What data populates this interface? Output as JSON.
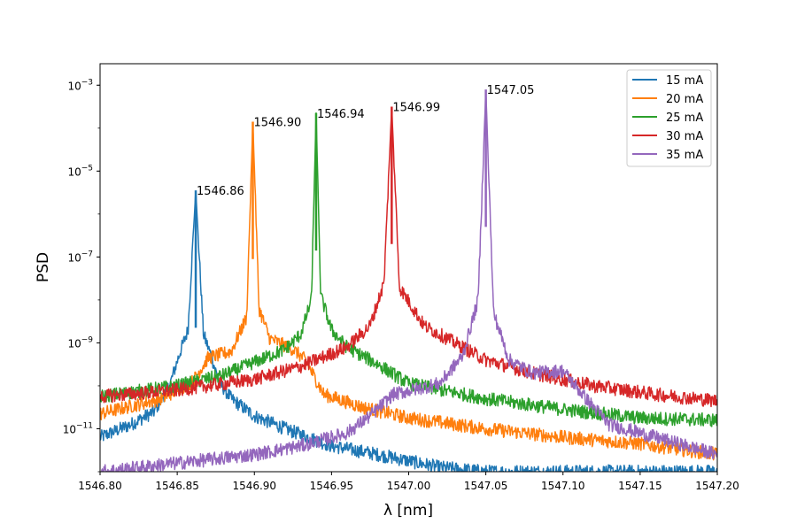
{
  "chart_data": {
    "type": "line",
    "xlabel": "λ [nm]",
    "ylabel": "PSD",
    "xlim": [
      1546.8,
      1547.2
    ],
    "ylim_log10": [
      -12.0,
      -2.5
    ],
    "y_scale": "log",
    "x_ticks": [
      "1546.80",
      "1546.85",
      "1546.90",
      "1546.95",
      "1547.00",
      "1547.05",
      "1547.10",
      "1547.15",
      "1547.20"
    ],
    "y_ticks": [
      {
        "base": "10",
        "exp": "−3",
        "log10": -3
      },
      {
        "base": "10",
        "exp": "−5",
        "log10": -5
      },
      {
        "base": "10",
        "exp": "−7",
        "log10": -7
      },
      {
        "base": "10",
        "exp": "−9",
        "log10": -9
      },
      {
        "base": "10",
        "exp": "−11",
        "log10": -11
      }
    ],
    "legend_position": "top-right",
    "grid": false,
    "series": [
      {
        "name": "15 mA",
        "color": "#1f77b4",
        "peak_x": 1546.862,
        "peak_log10": -5.45,
        "peak_label": "1546.86",
        "x": [
          1546.8,
          1546.82,
          1546.835,
          1546.845,
          1546.852,
          1546.857,
          1546.862,
          1546.867,
          1546.872,
          1546.877,
          1546.885,
          1546.9,
          1546.92,
          1546.95,
          1546.98,
          1547.02,
          1547.05
        ],
        "y_log10": [
          -11.2,
          -10.9,
          -10.6,
          -10.0,
          -9.2,
          -8.7,
          -5.45,
          -8.8,
          -9.3,
          -9.9,
          -10.3,
          -10.7,
          -11.0,
          -11.4,
          -11.6,
          -11.9,
          -12.0
        ]
      },
      {
        "name": "20 mA",
        "color": "#ff7f0e",
        "peak_x": 1546.899,
        "peak_log10": -3.85,
        "peak_label": "1546.90",
        "x": [
          1546.8,
          1546.84,
          1546.86,
          1546.87,
          1546.885,
          1546.895,
          1546.899,
          1546.903,
          1546.91,
          1546.925,
          1546.933,
          1546.945,
          1546.97,
          1547.0,
          1547.05,
          1547.1,
          1547.15,
          1547.2
        ],
        "y_log10": [
          -10.65,
          -10.3,
          -9.9,
          -9.35,
          -9.2,
          -8.4,
          -3.85,
          -8.2,
          -8.9,
          -9.15,
          -9.4,
          -10.2,
          -10.5,
          -10.75,
          -11.0,
          -11.2,
          -11.35,
          -11.6
        ]
      },
      {
        "name": "25 mA",
        "color": "#2ca02c",
        "peak_x": 1546.94,
        "peak_log10": -3.65,
        "peak_label": "1546.94",
        "x": [
          1546.8,
          1546.85,
          1546.88,
          1546.9,
          1546.92,
          1546.93,
          1546.937,
          1546.94,
          1546.943,
          1546.95,
          1546.96,
          1546.98,
          1547.0,
          1547.05,
          1547.1,
          1547.15,
          1547.2
        ],
        "y_log10": [
          -10.25,
          -10.0,
          -9.75,
          -9.45,
          -9.15,
          -8.8,
          -8.0,
          -3.65,
          -7.9,
          -8.7,
          -9.1,
          -9.5,
          -9.95,
          -10.3,
          -10.55,
          -10.75,
          -10.8
        ]
      },
      {
        "name": "30 mA",
        "color": "#d62728",
        "peak_x": 1546.989,
        "peak_log10": -3.5,
        "peak_label": "1546.99",
        "x": [
          1546.8,
          1546.85,
          1546.9,
          1546.93,
          1546.96,
          1546.975,
          1546.984,
          1546.989,
          1546.994,
          1547.01,
          1547.03,
          1547.05,
          1547.08,
          1547.12,
          1547.16,
          1547.2
        ],
        "y_log10": [
          -10.25,
          -10.1,
          -9.85,
          -9.55,
          -9.1,
          -8.6,
          -7.6,
          -3.5,
          -7.7,
          -8.6,
          -9.0,
          -9.4,
          -9.7,
          -10.0,
          -10.2,
          -10.35
        ]
      },
      {
        "name": "35 mA",
        "color": "#9467bd",
        "peak_x": 1547.05,
        "peak_log10": -3.1,
        "peak_label": "1547.05",
        "x": [
          1546.8,
          1546.85,
          1546.9,
          1546.93,
          1546.96,
          1546.975,
          1546.99,
          1547.02,
          1547.035,
          1547.045,
          1547.05,
          1547.055,
          1547.065,
          1547.08,
          1547.1,
          1547.115,
          1547.13,
          1547.16,
          1547.2
        ],
        "y_log10": [
          -12.0,
          -11.8,
          -11.6,
          -11.4,
          -11.1,
          -10.7,
          -10.2,
          -9.95,
          -9.3,
          -8.0,
          -3.1,
          -8.3,
          -9.4,
          -9.7,
          -9.65,
          -10.3,
          -10.9,
          -11.2,
          -11.6
        ]
      }
    ]
  }
}
